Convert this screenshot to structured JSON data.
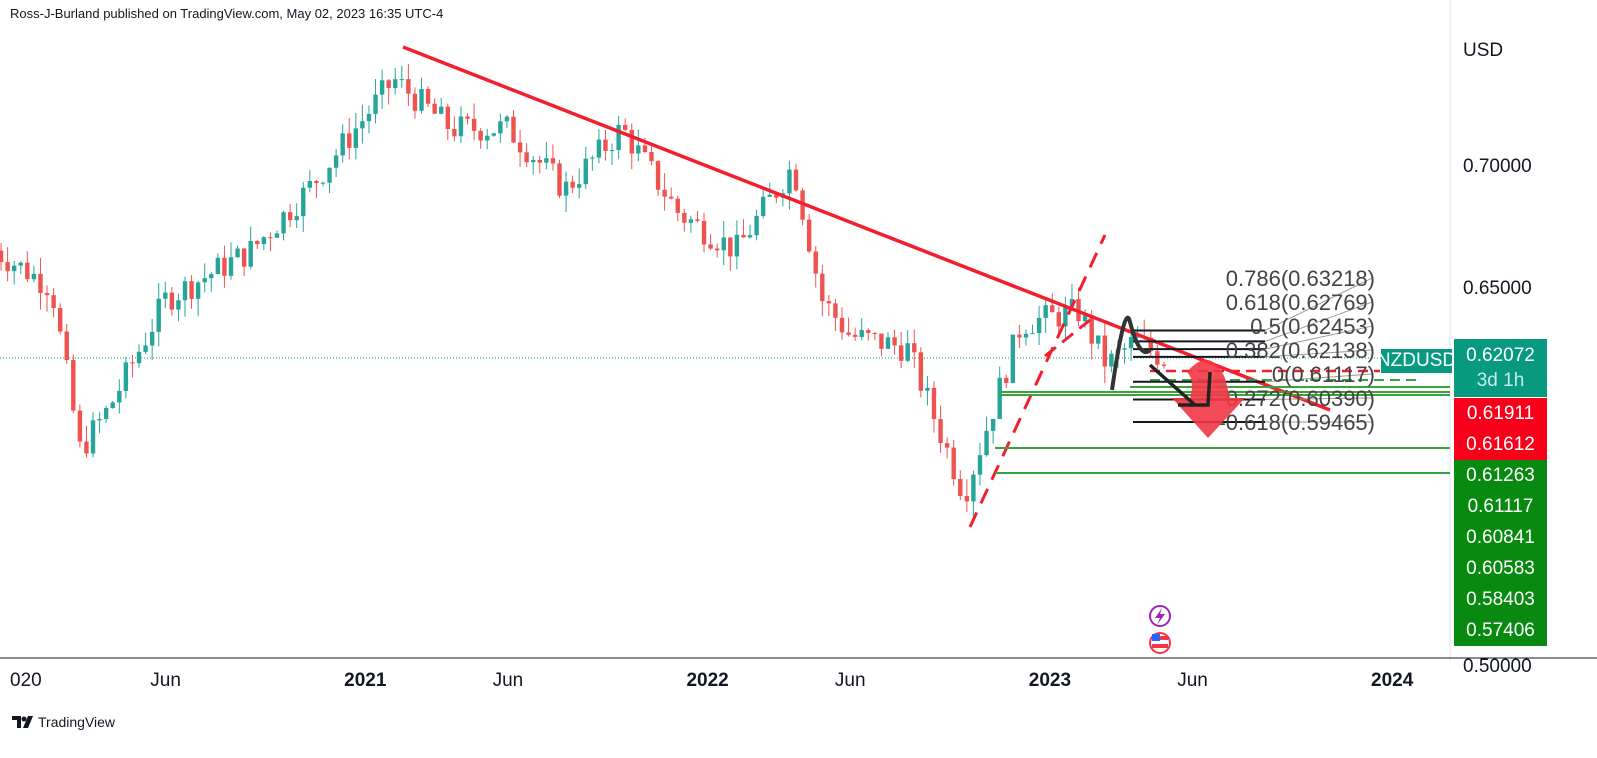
{
  "header": "Ross-J-Burland published on TradingView.com, May 02, 2023 16:35 UTC-4",
  "footer": {
    "brand": "TradingView"
  },
  "chart_data": {
    "type": "candlestick",
    "symbol": "NZDUSD",
    "interval": "weekly",
    "currency": "USD",
    "last_price": "0.62072",
    "countdown": "3d 1h",
    "y_ticks": [
      "0.70000",
      "0.65000",
      "0.50000"
    ],
    "x_ticks": [
      "020",
      "Jun",
      "2021",
      "Jun",
      "2022",
      "Jun",
      "2023",
      "Jun",
      "2024"
    ],
    "close_path": [
      [
        "2019-12",
        0.665
      ],
      [
        "2020-02",
        0.65
      ],
      [
        "2020-03",
        0.583
      ],
      [
        "2020-04",
        0.6
      ],
      [
        "2020-06",
        0.645
      ],
      [
        "2020-09",
        0.665
      ],
      [
        "2020-11",
        0.69
      ],
      [
        "2021-01",
        0.72
      ],
      [
        "2021-02",
        0.735
      ],
      [
        "2021-04",
        0.715
      ],
      [
        "2021-06",
        0.715
      ],
      [
        "2021-08",
        0.69
      ],
      [
        "2021-10",
        0.715
      ],
      [
        "2021-12",
        0.68
      ],
      [
        "2022-02",
        0.665
      ],
      [
        "2022-04",
        0.7
      ],
      [
        "2022-05",
        0.645
      ],
      [
        "2022-06",
        0.63
      ],
      [
        "2022-08",
        0.625
      ],
      [
        "2022-10",
        0.565
      ],
      [
        "2022-11",
        0.6
      ],
      [
        "2022-12",
        0.635
      ],
      [
        "2023-02",
        0.64
      ],
      [
        "2023-03",
        0.618
      ],
      [
        "2023-04",
        0.628
      ],
      [
        "2023-05",
        0.62072
      ]
    ],
    "fib_levels": [
      {
        "label": "0.786(0.63218)",
        "price": 0.63218
      },
      {
        "label": "0.618(0.62769)",
        "price": 0.62769
      },
      {
        "label": "0.5(0.62453)",
        "price": 0.62453
      },
      {
        "label": "0.382(0.62138)",
        "price": 0.62138
      },
      {
        "label": "0(0.61117)",
        "price": 0.61117
      },
      {
        "label": "-0.272(0.60390)",
        "price": 0.6039
      },
      {
        "label": "-0.618(0.59465)",
        "price": 0.59465
      }
    ],
    "price_badges": [
      {
        "value": "0.61911",
        "color": "#f7001a"
      },
      {
        "value": "0.61612",
        "color": "#f7001a"
      },
      {
        "value": "0.61263",
        "color": "#088a10"
      },
      {
        "value": "0.61117",
        "color": "#088a10"
      },
      {
        "value": "0.60841",
        "color": "#088a10"
      },
      {
        "value": "0.60583",
        "color": "#088a10"
      },
      {
        "value": "0.58403",
        "color": "#088a10"
      },
      {
        "value": "0.57406",
        "color": "#088a10"
      }
    ],
    "colors": {
      "up": "#26a69a",
      "down": "#ef5350",
      "trend": "#f2202e",
      "support": "#3ca33c"
    }
  }
}
